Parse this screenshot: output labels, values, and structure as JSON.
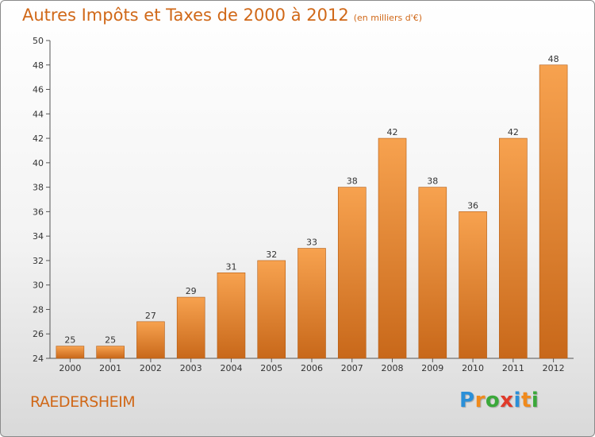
{
  "title": "Autres Impôts et Taxes de 2000 à 2012",
  "subtitle": "(en milliers d'€)",
  "commune": "RAEDERSHEIM",
  "logo": {
    "letters": [
      "P",
      "r",
      "o",
      "x",
      "i",
      "t",
      "i"
    ],
    "colors": [
      "#2a8fd8",
      "#f08a1c",
      "#3aa83a",
      "#e03a2a",
      "#2a8fd8",
      "#f08a1c",
      "#3aa83a"
    ]
  },
  "colors": {
    "bar_top": "#f7a24f",
    "bar_bottom": "#c8681a",
    "text_accent": "#d06818"
  },
  "chart_data": {
    "type": "bar",
    "title": "Autres Impôts et Taxes de 2000 à 2012",
    "subtitle": "(en milliers d'€)",
    "categories": [
      "2000",
      "2001",
      "2002",
      "2003",
      "2004",
      "2005",
      "2006",
      "2007",
      "2008",
      "2009",
      "2010",
      "2011",
      "2012"
    ],
    "values": [
      25,
      25,
      27,
      29,
      31,
      32,
      33,
      38,
      42,
      38,
      36,
      42,
      48
    ],
    "data_labels": [
      "25",
      "25",
      "27",
      "29",
      "31",
      "32",
      "33",
      "38",
      "42",
      "38",
      "36",
      "42",
      "48"
    ],
    "ylim": [
      24,
      50
    ],
    "yticks": [
      24,
      26,
      28,
      30,
      32,
      34,
      36,
      38,
      40,
      42,
      44,
      46,
      48,
      50
    ],
    "grid": false,
    "legend": "none"
  }
}
